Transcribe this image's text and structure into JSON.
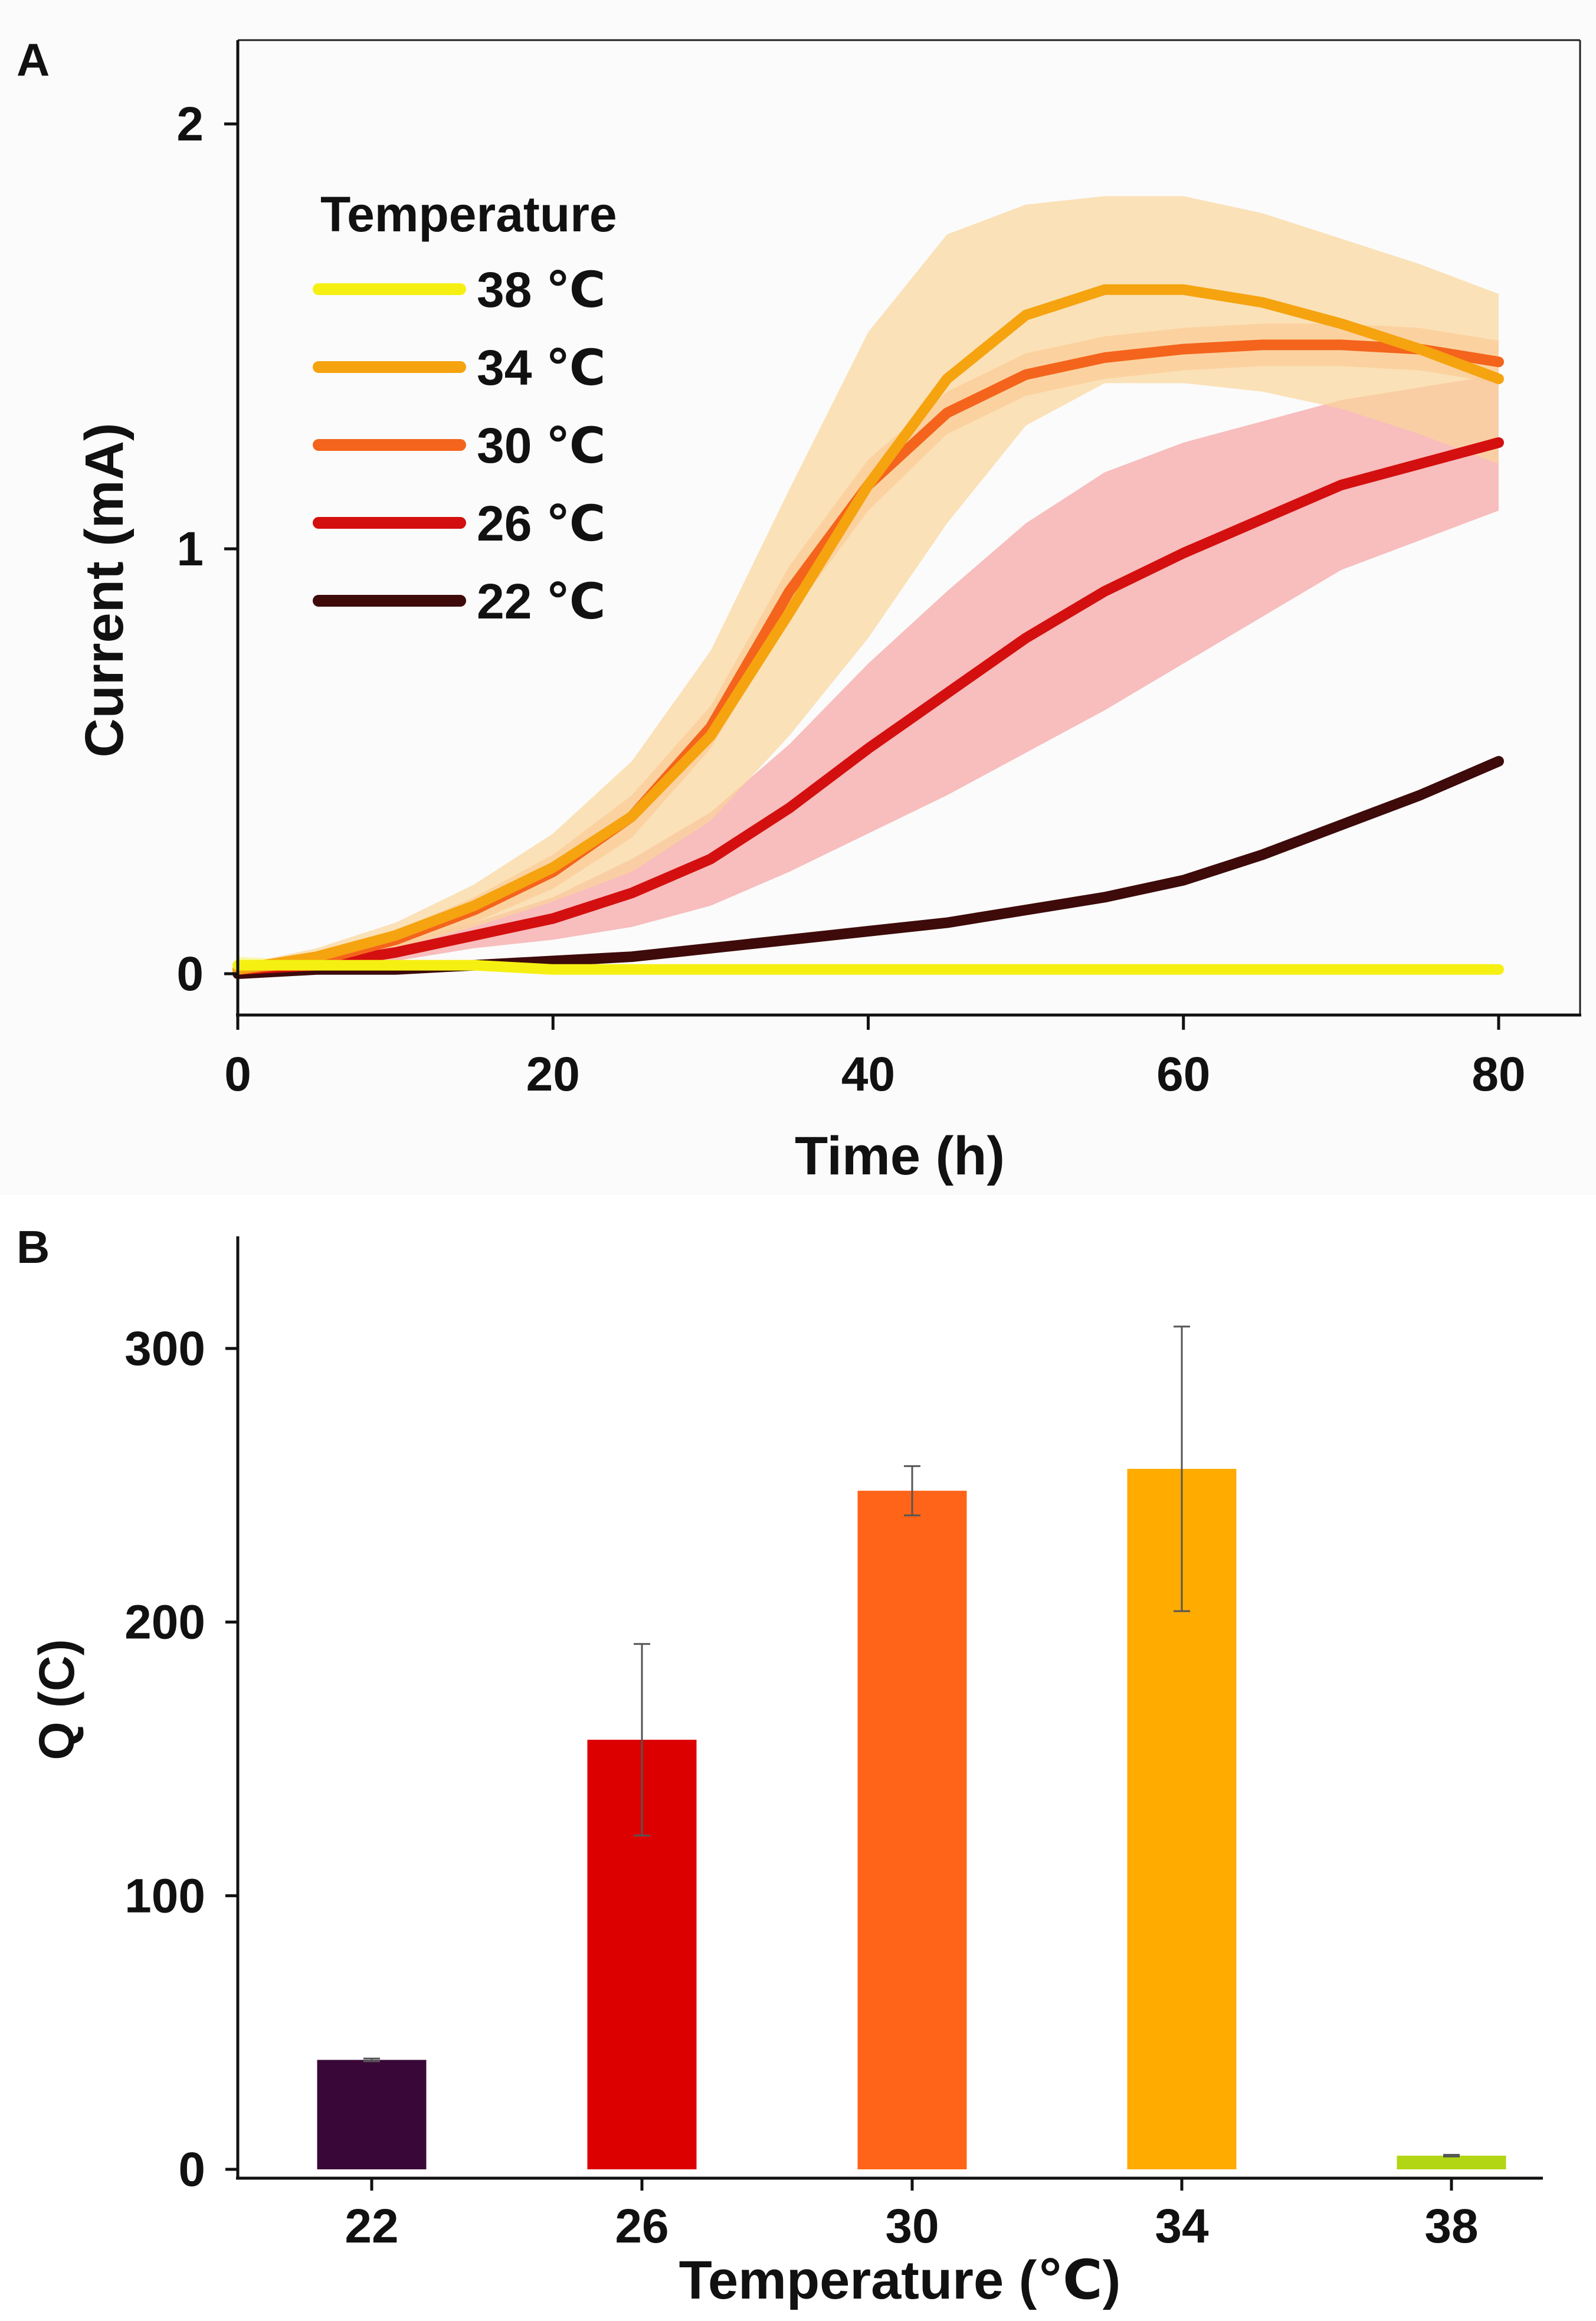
{
  "panel_a": {
    "letter": "A",
    "legend_title": "Temperature",
    "chart_data": {
      "type": "line",
      "title": "",
      "xlabel": "Time (h)",
      "ylabel": "Current  (mA)",
      "xlim": [
        0,
        80
      ],
      "ylim": [
        -0.1,
        2.2
      ],
      "xticks": [
        0,
        20,
        40,
        60,
        80
      ],
      "yticks": [
        0,
        1,
        2
      ],
      "x": [
        0,
        5,
        10,
        15,
        20,
        25,
        30,
        35,
        40,
        45,
        50,
        55,
        60,
        65,
        70,
        75,
        80
      ],
      "series": [
        {
          "name": "38 ℃",
          "color": "#f5f012",
          "band_color": "#f5f012",
          "values": [
            0.02,
            0.02,
            0.02,
            0.02,
            0.01,
            0.01,
            0.01,
            0.01,
            0.01,
            0.01,
            0.01,
            0.01,
            0.01,
            0.01,
            0.01,
            0.01,
            0.01
          ],
          "err": [
            0.02,
            0.01,
            0.01,
            0.01,
            0.01,
            0.01,
            0.01,
            0.01,
            0.01,
            0.01,
            0.01,
            0.01,
            0.01,
            0.01,
            0.01,
            0.01,
            0.01
          ]
        },
        {
          "name": "34 ℃",
          "color": "#f5a30f",
          "band_color": "#fbd59a",
          "values": [
            0.01,
            0.04,
            0.09,
            0.16,
            0.25,
            0.37,
            0.56,
            0.85,
            1.15,
            1.4,
            1.55,
            1.61,
            1.61,
            1.58,
            1.53,
            1.47,
            1.4
          ],
          "err": [
            0.01,
            0.02,
            0.03,
            0.05,
            0.08,
            0.13,
            0.2,
            0.29,
            0.36,
            0.34,
            0.26,
            0.22,
            0.22,
            0.21,
            0.2,
            0.2,
            0.2
          ]
        },
        {
          "name": "30 ℃",
          "color": "#f4641c",
          "band_color": "#f9b38a",
          "values": [
            0.01,
            0.03,
            0.08,
            0.15,
            0.24,
            0.37,
            0.58,
            0.9,
            1.15,
            1.32,
            1.41,
            1.45,
            1.47,
            1.48,
            1.48,
            1.47,
            1.44
          ],
          "err": [
            0.01,
            0.01,
            0.02,
            0.03,
            0.04,
            0.05,
            0.05,
            0.06,
            0.06,
            0.05,
            0.05,
            0.05,
            0.05,
            0.05,
            0.05,
            0.05,
            0.05
          ]
        },
        {
          "name": "26 ℃",
          "color": "#d40f0f",
          "band_color": "#f7a2a2",
          "values": [
            0.01,
            0.02,
            0.05,
            0.09,
            0.13,
            0.19,
            0.27,
            0.39,
            0.53,
            0.66,
            0.79,
            0.9,
            0.99,
            1.07,
            1.15,
            1.2,
            1.25
          ],
          "err": [
            0.01,
            0.01,
            0.02,
            0.03,
            0.05,
            0.08,
            0.11,
            0.15,
            0.2,
            0.24,
            0.27,
            0.28,
            0.26,
            0.23,
            0.2,
            0.18,
            0.16
          ]
        },
        {
          "name": "22 ℃",
          "color": "#3e0a0a",
          "band_color": "#c9a3a3",
          "values": [
            0.0,
            0.01,
            0.01,
            0.02,
            0.03,
            0.04,
            0.06,
            0.08,
            0.1,
            0.12,
            0.15,
            0.18,
            0.22,
            0.28,
            0.35,
            0.42,
            0.5
          ],
          "err": [
            0.0,
            0.0,
            0.0,
            0.0,
            0.0,
            0.0,
            0.01,
            0.01,
            0.01,
            0.01,
            0.01,
            0.01,
            0.01,
            0.01,
            0.01,
            0.01,
            0.01
          ]
        }
      ]
    }
  },
  "panel_b": {
    "letter": "B",
    "chart_data": {
      "type": "bar",
      "title": "",
      "xlabel": "Temperature  (℃)",
      "ylabel": "Q (C)",
      "ylim": [
        -5,
        340
      ],
      "yticks": [
        0,
        100,
        200,
        300
      ],
      "categories": [
        "22",
        "26",
        "30",
        "34",
        "38"
      ],
      "values": [
        40,
        157,
        248,
        256,
        5
      ],
      "errors": [
        0.5,
        35,
        9,
        52,
        0.3
      ],
      "colors": [
        "#3a0838",
        "#dd0000",
        "#ff6418",
        "#ffab00",
        "#b2d614"
      ]
    }
  }
}
